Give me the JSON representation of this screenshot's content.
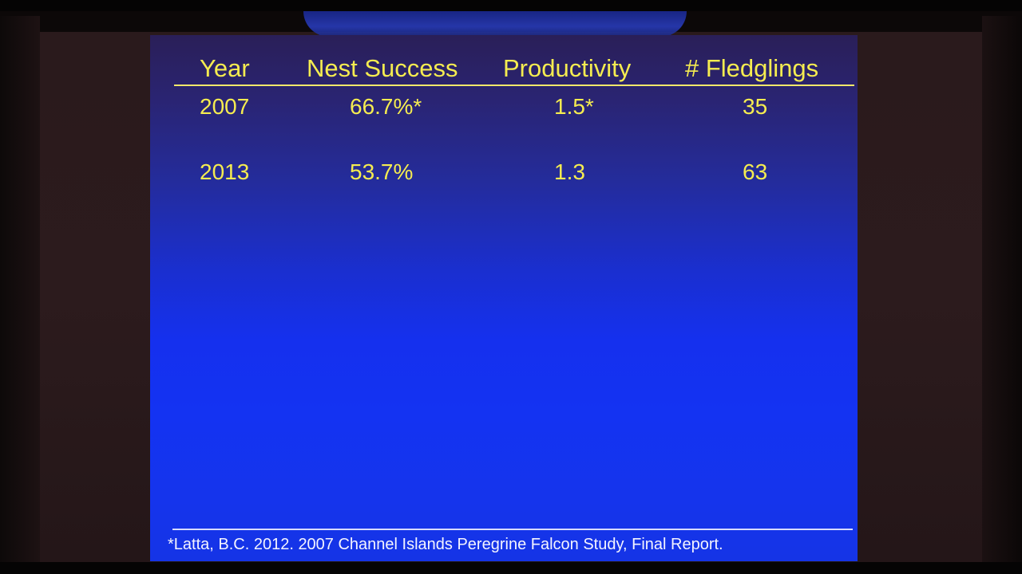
{
  "table": {
    "headers": [
      "Year",
      "Nest Success",
      "Productivity",
      "# Fledglings"
    ],
    "rows": [
      {
        "year": "2007",
        "nest_success": "66.7%*",
        "productivity": "1.5*",
        "fledglings": "35"
      },
      {
        "year": "2013",
        "nest_success": "53.7%",
        "productivity": "1.3",
        "fledglings": "63"
      }
    ]
  },
  "footnote": "*Latta, B.C. 2012. 2007 Channel Islands Peregrine Falcon Study, Final Report.",
  "colors": {
    "text": "#f5ec50",
    "slide_top": "#2a1f58",
    "slide_bottom": "#1534e6"
  }
}
